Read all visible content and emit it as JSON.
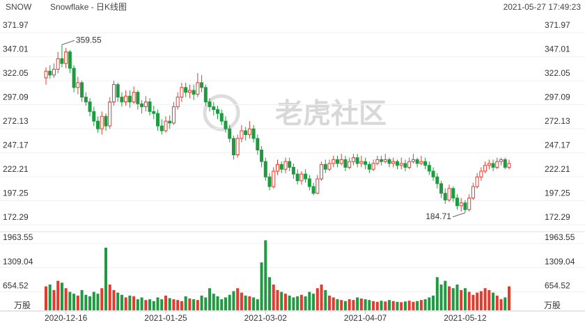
{
  "chart_data": {
    "type": "candlestick",
    "symbol": "SNOW",
    "title": "Snowflake - 日K线图",
    "timestamp": "2021-05-27 17:49:23",
    "watermark": "老虎社区",
    "volume_unit": "万股",
    "up_color": "#e8392c",
    "down_color": "#1e9b40",
    "grid": true,
    "categories": [
      null,
      null,
      null,
      null,
      null,
      "2020-12-16",
      null,
      null,
      null,
      null,
      null,
      null,
      null,
      null,
      null,
      null,
      null,
      null,
      null,
      null,
      null,
      null,
      null,
      null,
      null,
      null,
      null,
      null,
      null,
      null,
      "2021-01-25",
      null,
      null,
      null,
      null,
      null,
      null,
      null,
      null,
      null,
      null,
      null,
      null,
      null,
      null,
      null,
      null,
      null,
      null,
      null,
      null,
      null,
      null,
      null,
      null,
      "2021-03-02",
      null,
      null,
      null,
      null,
      null,
      null,
      null,
      null,
      null,
      null,
      null,
      null,
      null,
      null,
      null,
      null,
      null,
      null,
      null,
      null,
      null,
      null,
      null,
      null,
      "2021-04-07",
      null,
      null,
      null,
      null,
      null,
      null,
      null,
      null,
      null,
      null,
      null,
      null,
      null,
      null,
      null,
      null,
      null,
      null,
      null,
      null,
      null,
      null,
      null,
      null,
      "2021-05-12",
      null,
      null,
      null,
      null,
      null,
      null,
      null,
      null,
      null,
      null,
      null
    ],
    "open": [
      325,
      332,
      328,
      334,
      345,
      340,
      352,
      335,
      315,
      320,
      305,
      300,
      290,
      280,
      272,
      285,
      275,
      300,
      318,
      305,
      300,
      306,
      300,
      310,
      298,
      295,
      300,
      290,
      288,
      275,
      270,
      280,
      278,
      295,
      305,
      315,
      310,
      312,
      308,
      320,
      315,
      300,
      295,
      292,
      288,
      280,
      272,
      262,
      245,
      262,
      270,
      266,
      272,
      262,
      250,
      238,
      222,
      212,
      228,
      235,
      230,
      238,
      232,
      225,
      218,
      225,
      220,
      212,
      205,
      220,
      235,
      230,
      236,
      240,
      236,
      240,
      232,
      238,
      242,
      236,
      238,
      235,
      230,
      236,
      240,
      238,
      240,
      236,
      238,
      234,
      236,
      232,
      238,
      240,
      236,
      238,
      234,
      228,
      222,
      215,
      205,
      198,
      210,
      200,
      192,
      195,
      188,
      200,
      212,
      222,
      228,
      234,
      236,
      232,
      238,
      240,
      232
    ],
    "high": [
      336,
      338,
      340,
      352,
      359.55,
      356,
      354,
      338,
      326,
      322,
      310,
      304,
      295,
      285,
      290,
      288,
      305,
      322,
      320,
      310,
      312,
      312,
      316,
      312,
      302,
      306,
      304,
      296,
      292,
      282,
      285,
      286,
      300,
      310,
      320,
      320,
      318,
      318,
      330,
      328,
      318,
      304,
      300,
      296,
      292,
      285,
      276,
      265,
      266,
      276,
      274,
      280,
      276,
      266,
      254,
      242,
      226,
      232,
      240,
      238,
      242,
      242,
      236,
      230,
      228,
      230,
      224,
      216,
      224,
      238,
      240,
      240,
      244,
      244,
      246,
      244,
      242,
      246,
      246,
      244,
      242,
      238,
      240,
      244,
      244,
      246,
      242,
      242,
      240,
      242,
      240,
      242,
      246,
      242,
      244,
      242,
      238,
      232,
      226,
      218,
      210,
      214,
      212,
      204,
      200,
      198,
      204,
      216,
      226,
      232,
      238,
      240,
      240,
      242,
      242,
      242,
      240
    ],
    "low": [
      318,
      324,
      325,
      330,
      336,
      335,
      330,
      310,
      308,
      300,
      296,
      285,
      275,
      268,
      266,
      270,
      272,
      296,
      300,
      295,
      296,
      294,
      298,
      292,
      288,
      290,
      286,
      282,
      270,
      266,
      268,
      272,
      276,
      292,
      300,
      305,
      304,
      302,
      305,
      310,
      296,
      290,
      286,
      282,
      276,
      268,
      258,
      240,
      242,
      258,
      260,
      262,
      258,
      245,
      232,
      218,
      208,
      210,
      224,
      226,
      226,
      228,
      220,
      214,
      214,
      216,
      208,
      203,
      204,
      218,
      226,
      228,
      232,
      232,
      234,
      228,
      230,
      234,
      232,
      232,
      230,
      226,
      228,
      234,
      234,
      236,
      232,
      232,
      230,
      230,
      228,
      230,
      236,
      232,
      234,
      230,
      224,
      218,
      210,
      200,
      194,
      196,
      196,
      188,
      186,
      184.71,
      186,
      198,
      210,
      218,
      226,
      230,
      228,
      230,
      234,
      230,
      230
    ],
    "close": [
      332,
      328,
      334,
      345,
      340,
      352,
      335,
      315,
      320,
      305,
      300,
      290,
      280,
      272,
      285,
      275,
      300,
      318,
      305,
      300,
      306,
      300,
      310,
      298,
      295,
      300,
      290,
      288,
      275,
      270,
      280,
      278,
      295,
      305,
      315,
      310,
      312,
      308,
      320,
      315,
      300,
      295,
      292,
      288,
      280,
      272,
      262,
      245,
      262,
      270,
      266,
      272,
      262,
      250,
      238,
      222,
      212,
      228,
      235,
      230,
      238,
      232,
      225,
      218,
      225,
      220,
      212,
      205,
      220,
      235,
      230,
      236,
      240,
      236,
      240,
      232,
      238,
      242,
      236,
      238,
      235,
      230,
      236,
      240,
      238,
      240,
      236,
      238,
      234,
      236,
      232,
      238,
      240,
      236,
      238,
      234,
      228,
      222,
      215,
      205,
      198,
      210,
      200,
      192,
      195,
      188,
      200,
      212,
      222,
      228,
      234,
      236,
      232,
      238,
      240,
      232,
      236
    ],
    "volume": [
      650,
      700,
      550,
      800,
      750,
      600,
      500,
      450,
      400,
      550,
      420,
      380,
      500,
      450,
      600,
      1700,
      700,
      550,
      480,
      420,
      350,
      400,
      380,
      300,
      350,
      280,
      300,
      250,
      350,
      300,
      400,
      330,
      300,
      280,
      250,
      380,
      320,
      300,
      280,
      400,
      350,
      600,
      450,
      380,
      300,
      350,
      420,
      520,
      600,
      480,
      400,
      380,
      350,
      300,
      1300,
      1900,
      900,
      700,
      550,
      500,
      450,
      400,
      350,
      380,
      420,
      380,
      500,
      450,
      600,
      700,
      550,
      400,
      350,
      300,
      280,
      250,
      300,
      280,
      350,
      320,
      300,
      280,
      250,
      230,
      260,
      240,
      280,
      250,
      230,
      220,
      240,
      260,
      230,
      250,
      280,
      300,
      350,
      400,
      900,
      700,
      800,
      650,
      600,
      700,
      550,
      600,
      500,
      420,
      480,
      520,
      600,
      550,
      480,
      400,
      300,
      350,
      650
    ],
    "ylim": [
      172.29,
      371.97
    ],
    "yticks": [
      371.97,
      347.01,
      322.05,
      297.09,
      272.13,
      247.17,
      222.21,
      197.25,
      172.29
    ],
    "vlim": [
      0,
      1963.55
    ],
    "vticks": [
      654.52,
      1309.04,
      1963.55
    ]
  }
}
